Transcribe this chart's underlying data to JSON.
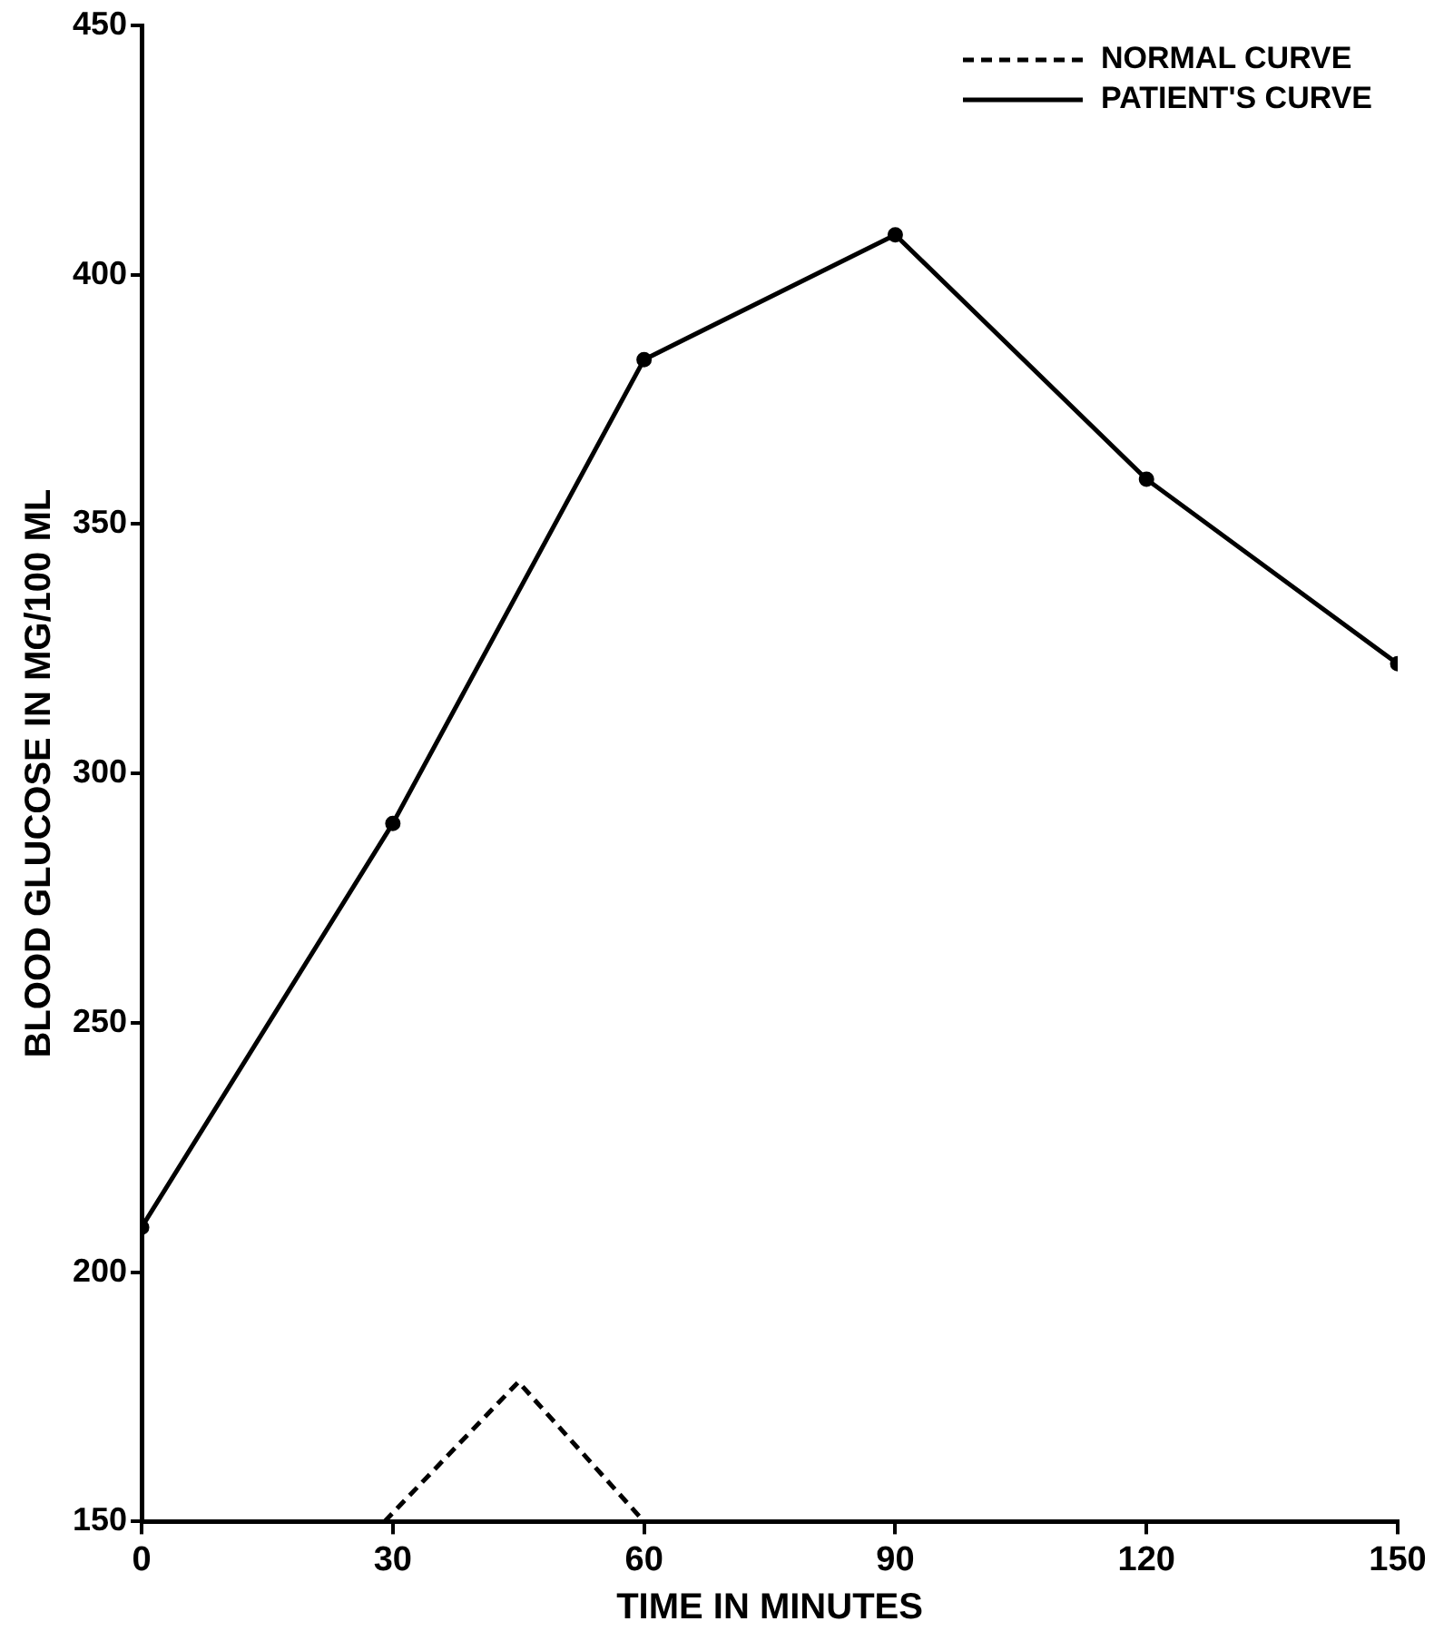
{
  "chart_data": {
    "type": "line",
    "xlabel": "TIME IN MINUTES",
    "ylabel": "BLOOD GLUCOSE IN MG/100 ML",
    "xlim": [
      0,
      150
    ],
    "xticks": [
      0,
      30,
      60,
      90,
      120,
      150
    ],
    "ylim": [
      150,
      450
    ],
    "yticks": [
      150,
      200,
      250,
      300,
      350,
      400,
      450
    ],
    "grid": false,
    "legend": "top right",
    "series": [
      {
        "name": "NORMAL CURVE",
        "color": "#000000",
        "x": [
          29,
          45,
          60
        ],
        "values": [
          150,
          178,
          150
        ],
        "line_style": "dashed",
        "marker": "none"
      },
      {
        "name": "PATIENT'S CURVE",
        "color": "#000000",
        "x": [
          0,
          30,
          60,
          90,
          120,
          150
        ],
        "values": [
          209,
          290,
          383,
          408,
          359,
          322
        ],
        "line_style": "solid",
        "marker": "circle"
      }
    ]
  }
}
